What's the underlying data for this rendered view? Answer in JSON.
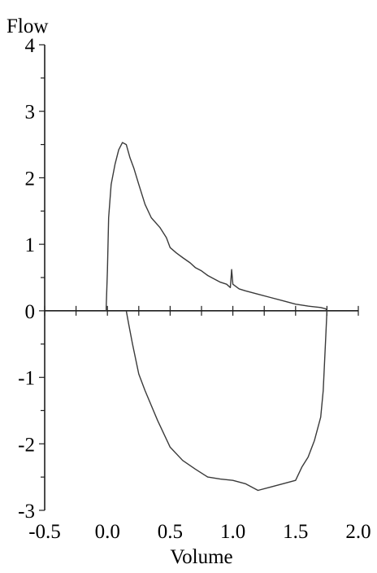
{
  "chart_data": {
    "type": "line",
    "xlabel": "Volume",
    "ylabel": "Flow",
    "xlim": [
      -0.5,
      2.0
    ],
    "ylim": [
      -3,
      4
    ],
    "x_ticks": [
      -0.5,
      0.0,
      0.5,
      1.0,
      1.5,
      2.0
    ],
    "x_tick_labels": [
      "-0.5",
      "0.0",
      "0.5",
      "1.0",
      "1.5",
      "2.0"
    ],
    "y_ticks": [
      -3,
      -2,
      -1,
      0,
      1,
      2,
      3,
      4
    ],
    "y_tick_labels": [
      "-3",
      "-2",
      "-1",
      "0",
      "1",
      "2",
      "3",
      "4"
    ],
    "grid": false,
    "legend": "none",
    "colors": {
      "curve": "#3a3a3a",
      "axis": "#1e1e1e"
    },
    "series": [
      {
        "x": [
          -0.01,
          -0.01,
          0.0,
          0.01,
          0.03,
          0.06,
          0.09,
          0.12,
          0.15,
          0.18,
          0.21,
          0.25,
          0.3,
          0.35,
          0.42,
          0.47,
          0.5,
          0.55,
          0.6,
          0.66,
          0.7,
          0.75,
          0.8,
          0.85,
          0.9,
          0.95,
          0.98,
          0.99,
          1.0,
          1.05,
          1.1,
          1.2,
          1.3,
          1.4,
          1.5,
          1.6,
          1.7,
          1.74,
          1.75
        ],
        "y": [
          0.0,
          0.05,
          0.6,
          1.4,
          1.9,
          2.2,
          2.42,
          2.53,
          2.5,
          2.3,
          2.15,
          1.9,
          1.6,
          1.4,
          1.25,
          1.1,
          0.95,
          0.87,
          0.8,
          0.72,
          0.65,
          0.6,
          0.53,
          0.48,
          0.43,
          0.4,
          0.35,
          0.62,
          0.4,
          0.33,
          0.3,
          0.25,
          0.2,
          0.15,
          0.1,
          0.07,
          0.05,
          0.03,
          0.0
        ]
      },
      {
        "x": [
          0.15,
          0.17,
          0.2,
          0.25,
          0.3,
          0.4,
          0.5,
          0.6,
          0.7,
          0.8,
          0.9,
          1.0,
          1.1,
          1.2,
          1.3,
          1.4,
          1.5,
          1.55,
          1.6,
          1.65,
          1.7,
          1.72,
          1.74,
          1.75
        ],
        "y": [
          0.0,
          -0.2,
          -0.5,
          -0.95,
          -1.2,
          -1.65,
          -2.05,
          -2.25,
          -2.38,
          -2.5,
          -2.53,
          -2.55,
          -2.6,
          -2.7,
          -2.65,
          -2.6,
          -2.55,
          -2.35,
          -2.2,
          -1.95,
          -1.6,
          -1.2,
          -0.4,
          0.0
        ]
      }
    ]
  }
}
